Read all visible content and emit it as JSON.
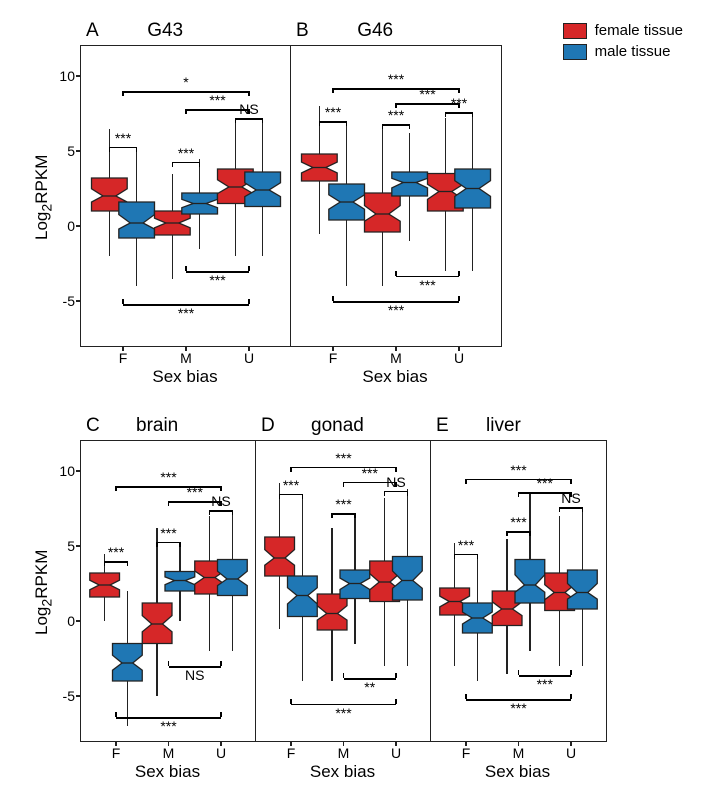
{
  "colors": {
    "female": "#d62728",
    "male": "#1f77b4",
    "panel_border": "#222222",
    "background": "#ffffff"
  },
  "legend": {
    "items": [
      {
        "label": "female tissue",
        "color": "#d62728"
      },
      {
        "label": "male tissue",
        "color": "#1f77b4"
      }
    ]
  },
  "y_axis_label": "Log₂RPKM",
  "x_axis_label": "Sex bias",
  "x_categories": [
    "F",
    "M",
    "U"
  ],
  "panels_top": {
    "ylim": [
      -8,
      12
    ],
    "yticks": [
      -5,
      0,
      5,
      10
    ],
    "panels": [
      {
        "letter": "A",
        "title": "G43",
        "boxes": [
          {
            "group": "F",
            "sex": "female",
            "q1": 1.0,
            "median": 2.0,
            "q3": 3.2,
            "wlow": -2.0,
            "whigh": 6.5
          },
          {
            "group": "F",
            "sex": "male",
            "q1": -0.8,
            "median": 0.2,
            "q3": 1.6,
            "wlow": -4.0,
            "whigh": 5.0
          },
          {
            "group": "M",
            "sex": "female",
            "q1": -0.6,
            "median": 0.2,
            "q3": 1.0,
            "wlow": -3.5,
            "whigh": 3.5
          },
          {
            "group": "M",
            "sex": "male",
            "q1": 0.8,
            "median": 1.5,
            "q3": 2.2,
            "wlow": -1.5,
            "whigh": 4.5
          },
          {
            "group": "U",
            "sex": "female",
            "q1": 1.5,
            "median": 2.6,
            "q3": 3.8,
            "wlow": -2.0,
            "whigh": 7.0
          },
          {
            "group": "U",
            "sex": "male",
            "q1": 1.3,
            "median": 2.4,
            "q3": 3.6,
            "wlow": -2.0,
            "whigh": 7.0
          }
        ],
        "sig_top": [
          {
            "from": "F",
            "to": "U",
            "y": 9.0,
            "label": "*"
          },
          {
            "from": "M",
            "to": "U",
            "y": 7.8,
            "label": "***"
          },
          {
            "from": "Uf",
            "to": "Um",
            "y": 7.2,
            "label": "NS",
            "short": true
          },
          {
            "from": "Ff",
            "to": "Fm",
            "y": 5.3,
            "label": "***",
            "short": true
          },
          {
            "from": "Mf",
            "to": "Mm",
            "y": 4.3,
            "label": "***",
            "short": true
          }
        ],
        "sig_bottom": [
          {
            "from": "M",
            "to": "U",
            "y": -3.0,
            "label": "***"
          },
          {
            "from": "F",
            "to": "U",
            "y": -5.2,
            "label": "***"
          }
        ]
      },
      {
        "letter": "B",
        "title": "G46",
        "boxes": [
          {
            "group": "F",
            "sex": "female",
            "q1": 3.0,
            "median": 3.9,
            "q3": 4.8,
            "wlow": -0.5,
            "whigh": 8.0
          },
          {
            "group": "F",
            "sex": "male",
            "q1": 0.4,
            "median": 1.6,
            "q3": 2.8,
            "wlow": -4.0,
            "whigh": 6.8
          },
          {
            "group": "M",
            "sex": "female",
            "q1": -0.4,
            "median": 0.8,
            "q3": 2.2,
            "wlow": -4.0,
            "whigh": 6.6
          },
          {
            "group": "M",
            "sex": "male",
            "q1": 2.0,
            "median": 2.9,
            "q3": 3.6,
            "wlow": -1.0,
            "whigh": 6.2
          },
          {
            "group": "U",
            "sex": "female",
            "q1": 1.0,
            "median": 2.3,
            "q3": 3.5,
            "wlow": -3.0,
            "whigh": 7.2
          },
          {
            "group": "U",
            "sex": "male",
            "q1": 1.2,
            "median": 2.5,
            "q3": 3.8,
            "wlow": -3.0,
            "whigh": 7.4
          }
        ],
        "sig_top": [
          {
            "from": "F",
            "to": "U",
            "y": 9.2,
            "label": "***"
          },
          {
            "from": "M",
            "to": "U",
            "y": 8.2,
            "label": "***"
          },
          {
            "from": "Uf",
            "to": "Um",
            "y": 7.6,
            "label": "***",
            "short": true
          },
          {
            "from": "Ff",
            "to": "Fm",
            "y": 7.0,
            "label": "***",
            "short": true
          },
          {
            "from": "Mf",
            "to": "Mm",
            "y": 6.8,
            "label": "***",
            "short": true
          }
        ],
        "sig_bottom": [
          {
            "from": "M",
            "to": "U",
            "y": -3.3,
            "label": "***"
          },
          {
            "from": "F",
            "to": "U",
            "y": -5.0,
            "label": "***"
          }
        ]
      }
    ]
  },
  "panels_bottom": {
    "ylim": [
      -8,
      12
    ],
    "yticks": [
      -5,
      0,
      5,
      10
    ],
    "panels": [
      {
        "letter": "C",
        "title": "brain",
        "boxes": [
          {
            "group": "F",
            "sex": "female",
            "q1": 1.6,
            "median": 2.4,
            "q3": 3.2,
            "wlow": 0.0,
            "whigh": 4.5
          },
          {
            "group": "F",
            "sex": "male",
            "q1": -4.0,
            "median": -2.8,
            "q3": -1.5,
            "wlow": -7.0,
            "whigh": 2.0
          },
          {
            "group": "M",
            "sex": "female",
            "q1": -1.5,
            "median": -0.2,
            "q3": 1.2,
            "wlow": -5.0,
            "whigh": 6.2
          },
          {
            "group": "M",
            "sex": "male",
            "q1": 2.0,
            "median": 2.7,
            "q3": 3.3,
            "wlow": 0.0,
            "whigh": 5.2
          },
          {
            "group": "U",
            "sex": "female",
            "q1": 1.8,
            "median": 2.9,
            "q3": 4.0,
            "wlow": -2.0,
            "whigh": 7.0
          },
          {
            "group": "U",
            "sex": "male",
            "q1": 1.7,
            "median": 2.8,
            "q3": 4.1,
            "wlow": -2.0,
            "whigh": 7.2
          }
        ],
        "sig_top": [
          {
            "from": "F",
            "to": "U",
            "y": 9.0,
            "label": "***"
          },
          {
            "from": "M",
            "to": "U",
            "y": 8.0,
            "label": "***"
          },
          {
            "from": "Uf",
            "to": "Um",
            "y": 7.4,
            "label": "NS",
            "short": true
          },
          {
            "from": "Ff",
            "to": "Fm",
            "y": 4.0,
            "label": "***",
            "short": true
          },
          {
            "from": "Mf",
            "to": "Mm",
            "y": 5.3,
            "label": "***",
            "short": true
          }
        ],
        "sig_bottom": [
          {
            "from": "M",
            "to": "U",
            "y": -3.0,
            "label": "NS"
          },
          {
            "from": "F",
            "to": "U",
            "y": -6.4,
            "label": "***"
          }
        ]
      },
      {
        "letter": "D",
        "title": "gonad",
        "boxes": [
          {
            "group": "F",
            "sex": "female",
            "q1": 3.0,
            "median": 4.2,
            "q3": 5.6,
            "wlow": -0.5,
            "whigh": 9.2
          },
          {
            "group": "F",
            "sex": "male",
            "q1": 0.3,
            "median": 1.7,
            "q3": 3.0,
            "wlow": -4.0,
            "whigh": 8.5
          },
          {
            "group": "M",
            "sex": "female",
            "q1": -0.6,
            "median": 0.5,
            "q3": 1.8,
            "wlow": -4.0,
            "whigh": 6.2
          },
          {
            "group": "M",
            "sex": "male",
            "q1": 1.5,
            "median": 2.5,
            "q3": 3.4,
            "wlow": -1.5,
            "whigh": 7.0
          },
          {
            "group": "U",
            "sex": "female",
            "q1": 1.3,
            "median": 2.6,
            "q3": 4.0,
            "wlow": -3.0,
            "whigh": 8.2
          },
          {
            "group": "U",
            "sex": "male",
            "q1": 1.4,
            "median": 2.7,
            "q3": 4.3,
            "wlow": -3.0,
            "whigh": 8.8
          }
        ],
        "sig_top": [
          {
            "from": "F",
            "to": "U",
            "y": 10.3,
            "label": "***"
          },
          {
            "from": "M",
            "to": "U",
            "y": 9.3,
            "label": "***"
          },
          {
            "from": "Uf",
            "to": "Um",
            "y": 8.7,
            "label": "NS",
            "short": true
          },
          {
            "from": "Ff",
            "to": "Fm",
            "y": 8.5,
            "label": "***",
            "short": true
          },
          {
            "from": "Mf",
            "to": "Mm",
            "y": 7.2,
            "label": "***",
            "short": true
          }
        ],
        "sig_bottom": [
          {
            "from": "M",
            "to": "U",
            "y": -3.8,
            "label": "**"
          },
          {
            "from": "F",
            "to": "U",
            "y": -5.5,
            "label": "***"
          }
        ]
      },
      {
        "letter": "E",
        "title": "liver",
        "boxes": [
          {
            "group": "F",
            "sex": "female",
            "q1": 0.4,
            "median": 1.3,
            "q3": 2.2,
            "wlow": -3.0,
            "whigh": 5.2
          },
          {
            "group": "F",
            "sex": "male",
            "q1": -0.8,
            "median": 0.2,
            "q3": 1.2,
            "wlow": -4.0,
            "whigh": 4.5
          },
          {
            "group": "M",
            "sex": "female",
            "q1": -0.3,
            "median": 0.8,
            "q3": 2.0,
            "wlow": -3.5,
            "whigh": 5.5
          },
          {
            "group": "M",
            "sex": "male",
            "q1": 1.2,
            "median": 2.4,
            "q3": 4.1,
            "wlow": -2.0,
            "whigh": 8.5
          },
          {
            "group": "U",
            "sex": "female",
            "q1": 0.7,
            "median": 1.9,
            "q3": 3.2,
            "wlow": -3.0,
            "whigh": 7.0
          },
          {
            "group": "U",
            "sex": "male",
            "q1": 0.8,
            "median": 1.9,
            "q3": 3.4,
            "wlow": -3.0,
            "whigh": 7.5
          }
        ],
        "sig_top": [
          {
            "from": "F",
            "to": "U",
            "y": 9.5,
            "label": "***"
          },
          {
            "from": "M",
            "to": "U",
            "y": 8.6,
            "label": "***"
          },
          {
            "from": "Uf",
            "to": "Um",
            "y": 7.6,
            "label": "NS",
            "short": true
          },
          {
            "from": "Ff",
            "to": "Fm",
            "y": 4.5,
            "label": "***",
            "short": true
          },
          {
            "from": "Mf",
            "to": "Mm",
            "y": 6.0,
            "label": "***",
            "short": true
          }
        ],
        "sig_bottom": [
          {
            "from": "M",
            "to": "U",
            "y": -3.6,
            "label": "***"
          },
          {
            "from": "F",
            "to": "U",
            "y": -5.2,
            "label": "***"
          }
        ]
      }
    ]
  }
}
